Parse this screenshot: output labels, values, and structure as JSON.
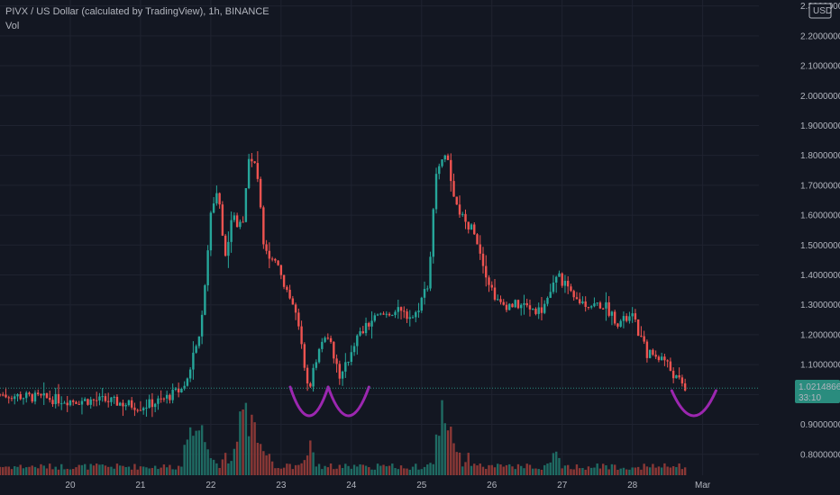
{
  "header": {
    "title": "PIVX / US Dollar (calculated by TradingView), 1h, BINANCE",
    "indicator": "Vol"
  },
  "currency": "USD",
  "price_marker": {
    "price": "1.02148660",
    "countdown": "33:10",
    "value": 1.0215
  },
  "colors": {
    "background": "#131722",
    "grid": "#1f2330",
    "up": "#26a69a",
    "down": "#ef5350",
    "vol_up": "#1f6b63",
    "vol_down": "#8a3836",
    "marker": "#2a8c7e",
    "annotation": "#9c27b0"
  },
  "chart_data": {
    "type": "candlestick",
    "title": "PIVX / US Dollar (calculated by TradingView), 1h, BINANCE",
    "y_range": [
      0.73,
      2.32
    ],
    "y_ticks": [
      {
        "value": 0.8,
        "label": "0.80000000"
      },
      {
        "value": 0.9,
        "label": "0.90000000"
      },
      {
        "value": 1.0,
        "label": "1.00000000"
      },
      {
        "value": 1.1,
        "label": "1.10000000"
      },
      {
        "value": 1.2,
        "label": "1.20000000"
      },
      {
        "value": 1.3,
        "label": "1.30000000"
      },
      {
        "value": 1.4,
        "label": "1.40000000"
      },
      {
        "value": 1.5,
        "label": "1.50000000"
      },
      {
        "value": 1.6,
        "label": "1.60000000"
      },
      {
        "value": 1.7,
        "label": "1.70000000"
      },
      {
        "value": 1.8,
        "label": "1.80000000"
      },
      {
        "value": 1.9,
        "label": "1.90000000"
      },
      {
        "value": 2.0,
        "label": "2.00000000"
      },
      {
        "value": 2.1,
        "label": "2.10000000"
      },
      {
        "value": 2.2,
        "label": "2.20000000"
      },
      {
        "value": 2.3,
        "label": "2.30000000"
      }
    ],
    "x_ticks": [
      "20",
      "21",
      "22",
      "23",
      "24",
      "25",
      "26",
      "27",
      "28",
      "Mar"
    ],
    "price_path": [
      [
        19.0,
        1.0
      ],
      [
        20.0,
        0.98
      ],
      [
        20.5,
        0.98
      ],
      [
        21.0,
        0.96
      ],
      [
        21.3,
        0.98
      ],
      [
        21.6,
        1.02
      ],
      [
        21.85,
        1.2
      ],
      [
        22.0,
        1.6
      ],
      [
        22.1,
        1.7
      ],
      [
        22.2,
        1.45
      ],
      [
        22.3,
        1.6
      ],
      [
        22.45,
        1.55
      ],
      [
        22.55,
        1.82
      ],
      [
        22.65,
        1.75
      ],
      [
        22.75,
        1.52
      ],
      [
        22.85,
        1.45
      ],
      [
        22.95,
        1.45
      ],
      [
        23.0,
        1.4
      ],
      [
        23.2,
        1.28
      ],
      [
        23.4,
        1.02
      ],
      [
        23.5,
        1.12
      ],
      [
        23.65,
        1.22
      ],
      [
        23.85,
        1.05
      ],
      [
        24.05,
        1.18
      ],
      [
        24.3,
        1.25
      ],
      [
        24.6,
        1.28
      ],
      [
        24.9,
        1.26
      ],
      [
        25.1,
        1.38
      ],
      [
        25.2,
        1.72
      ],
      [
        25.35,
        1.82
      ],
      [
        25.45,
        1.65
      ],
      [
        25.6,
        1.58
      ],
      [
        25.75,
        1.55
      ],
      [
        25.95,
        1.38
      ],
      [
        26.1,
        1.3
      ],
      [
        26.4,
        1.3
      ],
      [
        26.7,
        1.28
      ],
      [
        26.95,
        1.4
      ],
      [
        27.15,
        1.32
      ],
      [
        27.4,
        1.3
      ],
      [
        27.6,
        1.3
      ],
      [
        27.8,
        1.24
      ],
      [
        28.0,
        1.26
      ],
      [
        28.2,
        1.14
      ],
      [
        28.45,
        1.12
      ],
      [
        28.6,
        1.06
      ],
      [
        28.75,
        1.0215
      ]
    ],
    "volume_peaks": [
      [
        21.7,
        0.5
      ],
      [
        21.85,
        0.8
      ],
      [
        22.45,
        1.0
      ],
      [
        22.6,
        0.55
      ],
      [
        23.4,
        0.4
      ],
      [
        25.3,
        0.75
      ],
      [
        25.4,
        0.45
      ],
      [
        26.9,
        0.3
      ]
    ],
    "annotations": [
      {
        "shape": "arc-up",
        "x": [
          23.13,
          23.67
        ]
      },
      {
        "shape": "arc-up",
        "x": [
          23.67,
          24.25
        ]
      },
      {
        "shape": "arc-up",
        "x": [
          28.56,
          29.19
        ]
      }
    ]
  }
}
